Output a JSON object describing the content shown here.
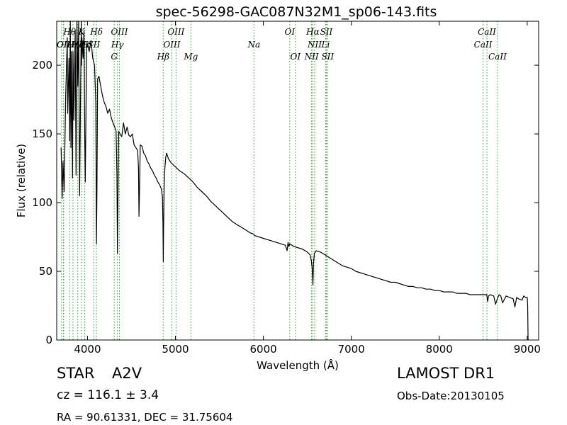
{
  "chart_data": {
    "type": "line",
    "title": "spec-56298-GAC087N32M1_sp06-143.fits",
    "xlabel": "Wavelength (Å)",
    "ylabel": "Flux (relative)",
    "xlim": [
      3650,
      9130
    ],
    "ylim": [
      0,
      232
    ],
    "xticks": [
      4000,
      5000,
      6000,
      7000,
      8000,
      9000
    ],
    "yticks": [
      0,
      50,
      100,
      150,
      200
    ],
    "grid": false,
    "series": [
      {
        "line_color": "#000000",
        "x": [
          3700,
          3712,
          3722,
          3735,
          3752,
          3770,
          3775,
          3790,
          3798,
          3805,
          3812,
          3818,
          3830,
          3835,
          3845,
          3860,
          3870,
          3880,
          3890,
          3900,
          3910,
          3930,
          3933,
          3936,
          3950,
          3960,
          3968,
          3975,
          3990,
          4000,
          4020,
          4040,
          4060,
          4080,
          4095,
          4102,
          4108,
          4115,
          4130,
          4150,
          4170,
          4190,
          4210,
          4230,
          4250,
          4270,
          4290,
          4310,
          4325,
          4335,
          4341,
          4347,
          4355,
          4370,
          4390,
          4410,
          4430,
          4450,
          4470,
          4490,
          4510,
          4530,
          4550,
          4570,
          4580,
          4586,
          4592,
          4600,
          4620,
          4640,
          4660,
          4680,
          4700,
          4720,
          4740,
          4760,
          4780,
          4800,
          4820,
          4840,
          4852,
          4858,
          4862,
          4866,
          4872,
          4880,
          4890,
          4900,
          4920,
          4950,
          5000,
          5050,
          5100,
          5150,
          5200,
          5250,
          5300,
          5350,
          5400,
          5450,
          5500,
          5550,
          5600,
          5650,
          5700,
          5750,
          5800,
          5850,
          5890,
          5900,
          5950,
          6000,
          6050,
          6100,
          6150,
          6200,
          6250,
          6270,
          6280,
          6290,
          6300,
          6350,
          6400,
          6450,
          6500,
          6530,
          6545,
          6555,
          6560,
          6563,
          6566,
          6570,
          6580,
          6600,
          6650,
          6700,
          6750,
          6800,
          6850,
          6900,
          6950,
          7000,
          7050,
          7100,
          7150,
          7200,
          7250,
          7300,
          7350,
          7400,
          7450,
          7500,
          7550,
          7600,
          7650,
          7700,
          7750,
          7800,
          7850,
          7900,
          7950,
          8000,
          8050,
          8100,
          8150,
          8200,
          8250,
          8300,
          8350,
          8400,
          8450,
          8500,
          8540,
          8550,
          8560,
          8580,
          8620,
          8640,
          8660,
          8680,
          8700,
          8720,
          8760,
          8800,
          8840,
          8860,
          8880,
          8900,
          8940,
          8960,
          8980,
          9000,
          9005,
          9010
        ],
        "y": [
          140,
          103,
          130,
          108,
          178,
          220,
          165,
          205,
          145,
          232,
          140,
          210,
          118,
          210,
          160,
          225,
          120,
          232,
          185,
          232,
          105,
          232,
          200,
          220,
          205,
          225,
          150,
          115,
          212,
          215,
          210,
          218,
          205,
          200,
          172,
          70,
          110,
          190,
          192,
          185,
          178,
          173,
          170,
          165,
          168,
          162,
          158,
          155,
          152,
          120,
          63,
          105,
          152,
          150,
          148,
          158,
          150,
          155,
          149,
          148,
          150,
          142,
          140,
          138,
          125,
          90,
          110,
          142,
          141,
          136,
          134,
          130,
          128,
          125,
          123,
          120,
          118,
          115,
          113,
          110,
          104,
          85,
          57,
          85,
          112,
          125,
          133,
          136,
          132,
          129,
          126,
          123,
          121,
          118,
          115,
          111,
          108,
          105,
          101,
          98,
          95,
          92,
          89,
          86,
          84,
          82,
          80,
          78,
          77,
          76,
          75,
          74,
          73,
          72,
          71,
          70,
          69,
          65,
          71,
          68,
          70,
          68,
          67,
          66,
          64,
          62,
          58,
          52,
          45,
          40,
          46,
          56,
          63,
          65,
          64,
          62,
          60,
          58,
          56,
          54,
          53,
          52,
          50,
          49,
          48,
          47,
          46,
          45,
          44,
          43,
          42,
          42,
          41,
          40,
          39,
          39,
          38,
          38,
          37,
          37,
          36,
          36,
          35,
          35,
          35,
          34,
          34,
          34,
          33,
          33,
          33,
          33,
          33,
          28,
          32,
          33,
          32,
          26,
          30,
          33,
          32,
          27,
          32,
          31,
          30,
          24,
          31,
          30,
          29,
          32,
          31,
          31,
          25,
          0
        ]
      }
    ],
    "line_marker_color": "#2ca02c",
    "line_markers": [
      {
        "x": 3705,
        "label": "",
        "row": 0
      },
      {
        "x": 3727,
        "label": "OII",
        "row": 2
      },
      {
        "x": 3729,
        "label": "OII",
        "row": 1
      },
      {
        "x": 3797,
        "label": "Hθ",
        "row": 0
      },
      {
        "x": 3835,
        "label": "Hη",
        "row": 1
      },
      {
        "x": 3889,
        "label": "Hζ",
        "row": 2
      },
      {
        "x": 3933,
        "label": "K",
        "row": 0
      },
      {
        "x": 3968,
        "label": "H",
        "row": 1
      },
      {
        "x": 3970,
        "label": "Hε",
        "row": 2
      },
      {
        "x": 4072,
        "label": "SII",
        "row": 1
      },
      {
        "x": 4102,
        "label": "Hδ",
        "row": 0
      },
      {
        "x": 4304,
        "label": "G",
        "row": 3
      },
      {
        "x": 4341,
        "label": "Hγ",
        "row": 2
      },
      {
        "x": 4363,
        "label": "OIII",
        "row": 0
      },
      {
        "x": 4861,
        "label": "Hβ",
        "row": 3
      },
      {
        "x": 4959,
        "label": "OIII",
        "row": 2
      },
      {
        "x": 5007,
        "label": "OIII",
        "row": 0
      },
      {
        "x": 5176,
        "label": "Mg",
        "row": 3
      },
      {
        "x": 5893,
        "label": "Na",
        "row": 2
      },
      {
        "x": 6300,
        "label": "OI",
        "row": 0
      },
      {
        "x": 6364,
        "label": "OI",
        "row": 3
      },
      {
        "x": 6548,
        "label": "NII",
        "row": 3
      },
      {
        "x": 6563,
        "label": "Hα",
        "row": 0
      },
      {
        "x": 6583,
        "label": "NII",
        "row": 2
      },
      {
        "x": 6708,
        "label": "Li",
        "row": 2
      },
      {
        "x": 6716,
        "label": "SII",
        "row": 0
      },
      {
        "x": 6731,
        "label": "SII",
        "row": 3
      },
      {
        "x": 8498,
        "label": "CaII",
        "row": 2
      },
      {
        "x": 8542,
        "label": "CaII",
        "row": 0
      },
      {
        "x": 8662,
        "label": "CaII",
        "row": 3
      }
    ]
  },
  "info": {
    "object_class": "STAR",
    "subclass": "A2V",
    "survey": "LAMOST DR1",
    "redshift_line": "cz = 116.1 ± 3.4",
    "obs_date": "Obs-Date:20130105",
    "coordinates": "RA = 90.61331, DEC = 31.75604"
  }
}
